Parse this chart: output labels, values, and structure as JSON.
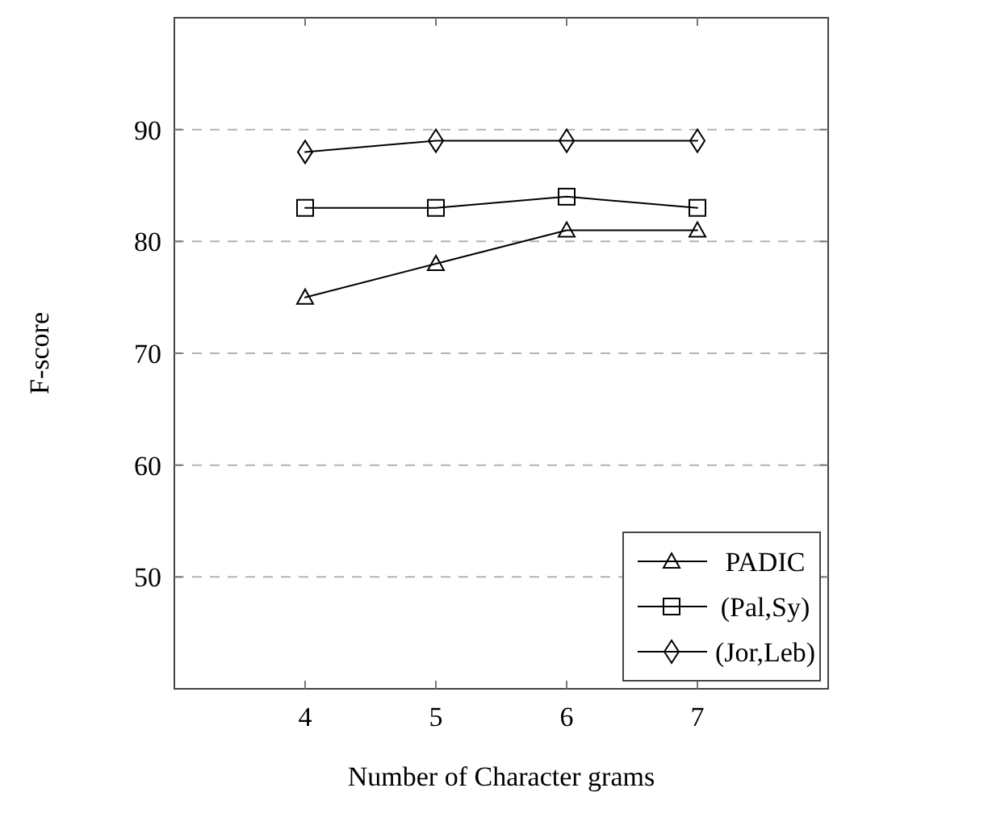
{
  "chart_data": {
    "type": "line",
    "xlabel": "Number of Character grams",
    "ylabel": "F-score",
    "x": [
      4,
      5,
      6,
      7
    ],
    "xlim": [
      3,
      8
    ],
    "xticks": [
      4,
      5,
      6,
      7
    ],
    "ylim": [
      40,
      100
    ],
    "yticks": [
      50,
      60,
      70,
      80,
      90
    ],
    "grid": "y",
    "legend": "bottom right",
    "series": [
      {
        "name": "PADIC",
        "color": "#000000",
        "marker": "triangle",
        "values": [
          75,
          78,
          81,
          81
        ]
      },
      {
        "name": "(Pal,Sy)",
        "color": "#000000",
        "marker": "square",
        "values": [
          83,
          83,
          84,
          83
        ]
      },
      {
        "name": "(Jor,Leb)",
        "color": "#000000",
        "marker": "diamond",
        "values": [
          88,
          89,
          89,
          89
        ]
      }
    ]
  }
}
